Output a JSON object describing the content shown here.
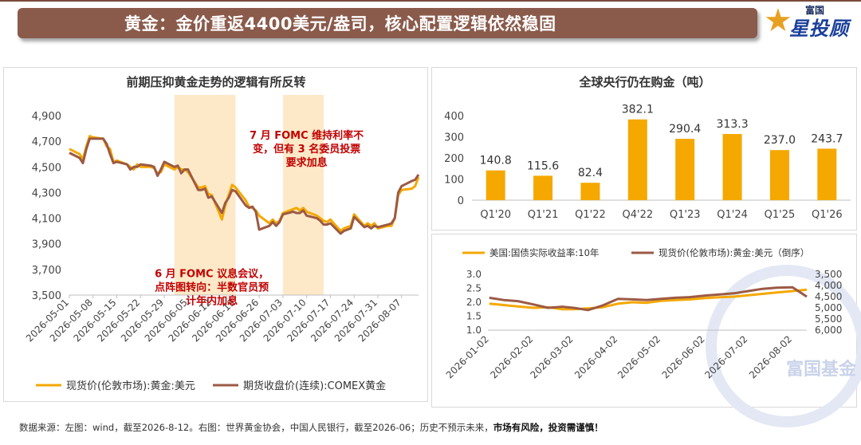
{
  "header": {
    "title": "黄金：金价重返4400美元/盎司，核心配置逻辑依然稳固",
    "logo_top": "富国",
    "logo_main": "星投顾"
  },
  "footer": {
    "source_text": "数据来源：左图：wind，截至2026-8-12。右图：世界黄金协会，中国人民银行，截至2026-06；历史不预示未来，",
    "risk_text": "市场有风险，投资需谨慎！"
  },
  "watermark": "富国基金",
  "colors": {
    "gold": "#f5a800",
    "brown": "#9c5a44",
    "shade": "#fde9c8",
    "annot": "#c00000",
    "banner": "#8a5a4b"
  },
  "chart_data": [
    {
      "type": "line",
      "title": "前期压抑黄金走势的逻辑有所反转",
      "ylim": [
        3500,
        4900
      ],
      "yticks": [
        "3,500",
        "3,700",
        "3,900",
        "4,100",
        "4,300",
        "4,500",
        "4,700",
        "4,900"
      ],
      "ytick_values": [
        3500,
        3700,
        3900,
        4100,
        4300,
        4500,
        4700,
        4900
      ],
      "xticks": [
        "2026-05-01",
        "2026-05-08",
        "2026-05-15",
        "2026-05-22",
        "2026-05-29",
        "2026-06-05",
        "2026-06-12",
        "2026-06-19",
        "2026-06-26",
        "2026-07-03",
        "2026-07-10",
        "2026-07-17",
        "2026-07-24",
        "2026-07-31",
        "2026-08-07"
      ],
      "x_range": [
        "2026-05-01",
        "2026-08-12"
      ],
      "shaded_periods": [
        [
          "2026-06-01",
          "2026-06-19"
        ],
        [
          "2026-07-03",
          "2026-07-15"
        ]
      ],
      "annotations": [
        {
          "text_lines": [
            "7 月 FOMC 维持利率不",
            "变，但有 3 名委员投票",
            "要求加息"
          ],
          "anchor": "2026-07-10",
          "y": 4720
        },
        {
          "text_lines": [
            "6 月 FOMC 议息会议，",
            "点阵图转向：半数官员预",
            "计年内加息"
          ],
          "anchor": "2026-06-12",
          "y": 3640
        }
      ],
      "series": [
        {
          "name": "现货价(伦敦市场):黄金:美元",
          "color": "#f5a800",
          "x": [
            "2026-05-01",
            "2026-05-04",
            "2026-05-05",
            "2026-05-06",
            "2026-05-07",
            "2026-05-08",
            "2026-05-11",
            "2026-05-12",
            "2026-05-13",
            "2026-05-14",
            "2026-05-15",
            "2026-05-18",
            "2026-05-19",
            "2026-05-20",
            "2026-05-21",
            "2026-05-22",
            "2026-05-25",
            "2026-05-26",
            "2026-05-27",
            "2026-05-28",
            "2026-05-29",
            "2026-06-01",
            "2026-06-02",
            "2026-06-03",
            "2026-06-04",
            "2026-06-05",
            "2026-06-08",
            "2026-06-09",
            "2026-06-10",
            "2026-06-11",
            "2026-06-12",
            "2026-06-15",
            "2026-06-16",
            "2026-06-17",
            "2026-06-18",
            "2026-06-19",
            "2026-06-22",
            "2026-06-23",
            "2026-06-24",
            "2026-06-25",
            "2026-06-26",
            "2026-06-29",
            "2026-06-30",
            "2026-07-01",
            "2026-07-02",
            "2026-07-03",
            "2026-07-06",
            "2026-07-07",
            "2026-07-08",
            "2026-07-09",
            "2026-07-10",
            "2026-07-13",
            "2026-07-14",
            "2026-07-15",
            "2026-07-16",
            "2026-07-17",
            "2026-07-20",
            "2026-07-21",
            "2026-07-22",
            "2026-07-23",
            "2026-07-24",
            "2026-07-27",
            "2026-07-28",
            "2026-07-29",
            "2026-07-30",
            "2026-07-31",
            "2026-08-03",
            "2026-08-04",
            "2026-08-05",
            "2026-08-06",
            "2026-08-07",
            "2026-08-10",
            "2026-08-11",
            "2026-08-12"
          ],
          "y": [
            4640,
            4600,
            4560,
            4660,
            4740,
            4730,
            4720,
            4660,
            4640,
            4540,
            4550,
            4520,
            4500,
            4480,
            4520,
            4500,
            4500,
            4490,
            4450,
            4460,
            4520,
            4480,
            4500,
            4480,
            4480,
            4460,
            4340,
            4340,
            4350,
            4290,
            4280,
            4090,
            4200,
            4280,
            4360,
            4340,
            4240,
            4190,
            4180,
            4160,
            4120,
            4060,
            4090,
            4060,
            4080,
            4140,
            4170,
            4180,
            4160,
            4180,
            4150,
            4120,
            4100,
            4080,
            4070,
            4090,
            4000,
            4020,
            4030,
            4040,
            4130,
            4040,
            4060,
            4040,
            4060,
            4020,
            4040,
            4040,
            4100,
            4280,
            4320,
            4330,
            4350,
            4420
          ]
        },
        {
          "name": "期货收盘价(连续):COMEX黄金",
          "color": "#9c5a44",
          "x": [
            "2026-05-01",
            "2026-05-04",
            "2026-05-05",
            "2026-05-06",
            "2026-05-07",
            "2026-05-08",
            "2026-05-11",
            "2026-05-12",
            "2026-05-13",
            "2026-05-14",
            "2026-05-15",
            "2026-05-18",
            "2026-05-19",
            "2026-05-20",
            "2026-05-21",
            "2026-05-22",
            "2026-05-25",
            "2026-05-26",
            "2026-05-27",
            "2026-05-28",
            "2026-05-29",
            "2026-06-01",
            "2026-06-02",
            "2026-06-03",
            "2026-06-04",
            "2026-06-05",
            "2026-06-08",
            "2026-06-09",
            "2026-06-10",
            "2026-06-11",
            "2026-06-12",
            "2026-06-15",
            "2026-06-16",
            "2026-06-17",
            "2026-06-18",
            "2026-06-19",
            "2026-06-22",
            "2026-06-23",
            "2026-06-24",
            "2026-06-25",
            "2026-06-26",
            "2026-06-29",
            "2026-06-30",
            "2026-07-01",
            "2026-07-02",
            "2026-07-03",
            "2026-07-06",
            "2026-07-07",
            "2026-07-08",
            "2026-07-09",
            "2026-07-10",
            "2026-07-13",
            "2026-07-14",
            "2026-07-15",
            "2026-07-16",
            "2026-07-17",
            "2026-07-20",
            "2026-07-21",
            "2026-07-22",
            "2026-07-23",
            "2026-07-24",
            "2026-07-27",
            "2026-07-28",
            "2026-07-29",
            "2026-07-30",
            "2026-07-31",
            "2026-08-03",
            "2026-08-04",
            "2026-08-05",
            "2026-08-06",
            "2026-08-07",
            "2026-08-10",
            "2026-08-11",
            "2026-08-12"
          ],
          "y": [
            4610,
            4570,
            4530,
            4640,
            4720,
            4720,
            4720,
            4680,
            4600,
            4530,
            4540,
            4520,
            4480,
            4500,
            4500,
            4520,
            4510,
            4500,
            4430,
            4480,
            4540,
            4500,
            4510,
            4450,
            4480,
            4480,
            4320,
            4320,
            4330,
            4260,
            4270,
            4140,
            4220,
            4260,
            4320,
            4310,
            4200,
            4180,
            4190,
            4150,
            4010,
            4040,
            4070,
            4040,
            4070,
            4130,
            4150,
            4140,
            4140,
            4160,
            4120,
            4100,
            4080,
            4050,
            4050,
            4060,
            3980,
            4000,
            4010,
            4020,
            4110,
            4030,
            4040,
            4020,
            4040,
            4030,
            4050,
            4060,
            4100,
            4300,
            4350,
            4390,
            4400,
            4440
          ]
        }
      ]
    },
    {
      "type": "bar",
      "title": "全球央行仍在购金（吨）",
      "categories": [
        "Q1'20",
        "Q1'21",
        "Q1'22",
        "Q4'22",
        "Q1'23",
        "Q1'24",
        "Q1'25",
        "Q1'26"
      ],
      "values": [
        140.8,
        115.6,
        82.4,
        382.1,
        290.4,
        313.3,
        237.0,
        243.7
      ],
      "value_labels": [
        "140.8",
        "115.6",
        "82.4",
        "382.1",
        "290.4",
        "313.3",
        "237.0",
        "243.7"
      ],
      "ylim": [
        0,
        400
      ],
      "yticks": [
        "0",
        "100",
        "200",
        "300",
        "400"
      ],
      "ytick_values": [
        0,
        100,
        200,
        300,
        400
      ],
      "color": "#f5a800"
    },
    {
      "type": "line",
      "legend_position": "top",
      "x_range": [
        "2026-01-01",
        "2026-08-12"
      ],
      "xticks": [
        "2026-01-02",
        "2026-02-02",
        "2026-03-02",
        "2026-04-02",
        "2026-05-02",
        "2026-06-02",
        "2026-07-02",
        "2026-08-02"
      ],
      "y_left": {
        "ylim": [
          1.0,
          3.0
        ],
        "ticks": [
          "1.0",
          "1.5",
          "2.0",
          "2.5",
          "3.0"
        ],
        "tick_values": [
          1.0,
          1.5,
          2.0,
          2.5,
          3.0
        ]
      },
      "y_right": {
        "ylim": [
          6000,
          3500
        ],
        "inverted": true,
        "ticks": [
          "3,500",
          "4,000",
          "4,500",
          "5,000",
          "5,500",
          "6,000"
        ],
        "tick_values": [
          3500,
          4000,
          4500,
          5000,
          5500,
          6000
        ]
      },
      "series": [
        {
          "name": "美国:国债实际收益率:10年",
          "axis": "left",
          "color": "#f5a800",
          "x": [
            "2026-01-02",
            "2026-01-12",
            "2026-01-22",
            "2026-02-02",
            "2026-02-12",
            "2026-02-22",
            "2026-03-02",
            "2026-03-12",
            "2026-03-22",
            "2026-04-02",
            "2026-04-12",
            "2026-04-22",
            "2026-05-02",
            "2026-05-12",
            "2026-05-22",
            "2026-06-02",
            "2026-06-12",
            "2026-06-22",
            "2026-07-02",
            "2026-07-12",
            "2026-07-22",
            "2026-08-02",
            "2026-08-12"
          ],
          "y": [
            1.95,
            1.9,
            1.85,
            1.8,
            1.82,
            1.75,
            1.75,
            1.78,
            1.82,
            1.95,
            2.0,
            1.98,
            2.05,
            2.08,
            2.1,
            2.15,
            2.18,
            2.2,
            2.25,
            2.3,
            2.35,
            2.4,
            2.45
          ]
        },
        {
          "name": "现货价(伦敦市场):黄金:美元（倒序）",
          "axis": "right",
          "color": "#9c5a44",
          "x": [
            "2026-01-02",
            "2026-01-12",
            "2026-01-22",
            "2026-02-02",
            "2026-02-12",
            "2026-02-22",
            "2026-03-02",
            "2026-03-12",
            "2026-03-22",
            "2026-04-02",
            "2026-04-12",
            "2026-04-22",
            "2026-05-02",
            "2026-05-12",
            "2026-05-22",
            "2026-06-02",
            "2026-06-12",
            "2026-06-22",
            "2026-07-02",
            "2026-07-12",
            "2026-07-22",
            "2026-08-02",
            "2026-08-12"
          ],
          "y": [
            4550,
            4650,
            4700,
            4850,
            5000,
            4950,
            5000,
            5100,
            4900,
            4600,
            4620,
            4650,
            4600,
            4550,
            4520,
            4450,
            4400,
            4350,
            4250,
            4150,
            4100,
            4080,
            4500
          ]
        }
      ]
    }
  ]
}
